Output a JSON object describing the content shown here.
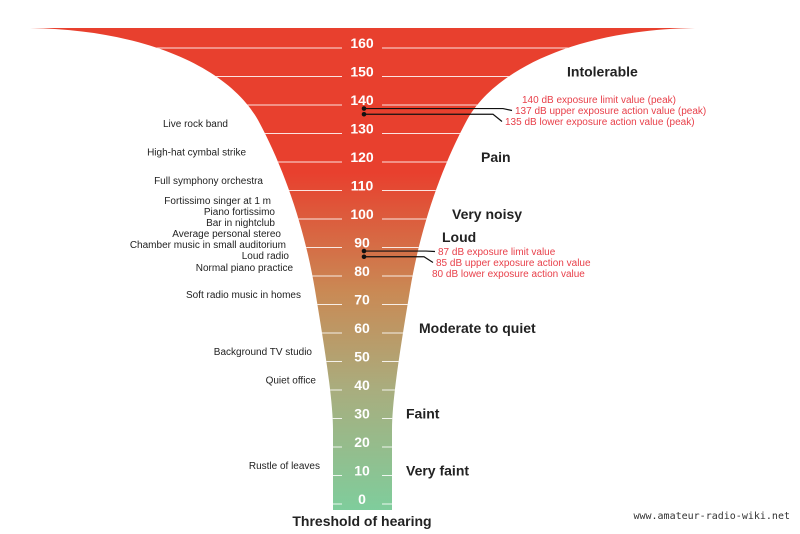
{
  "scale": {
    "unit": "dB",
    "levels": [
      160,
      150,
      140,
      130,
      120,
      110,
      100,
      90,
      80,
      70,
      60,
      50,
      40,
      30,
      20,
      10,
      0
    ]
  },
  "categories": [
    {
      "label": "Intolerable",
      "db": 150
    },
    {
      "label": "Pain",
      "db": 120
    },
    {
      "label": "Very noisy",
      "db": 100
    },
    {
      "label": "Loud",
      "db": 92
    },
    {
      "label": "Moderate to quiet",
      "db": 60
    },
    {
      "label": "Faint",
      "db": 30
    },
    {
      "label": "Very faint",
      "db": 10
    }
  ],
  "examples": [
    {
      "label": "Live rock band",
      "db": 132
    },
    {
      "label": "High-hat cymbal strike",
      "db": 122
    },
    {
      "label": "Full symphony orchestra",
      "db": 112
    },
    {
      "label": "Fortissimo singer at 1 m",
      "db": 104
    },
    {
      "label": "Piano fortissimo",
      "db": 100.5
    },
    {
      "label": "Bar in nightclub",
      "db": 97.5
    },
    {
      "label": "Average personal stereo",
      "db": 93.5
    },
    {
      "label": "Chamber music in small auditorium",
      "db": 90
    },
    {
      "label": "Loud radio",
      "db": 86
    },
    {
      "label": "Normal piano practice",
      "db": 81.5
    },
    {
      "label": "Soft radio music in homes",
      "db": 72
    },
    {
      "label": "Background TV studio",
      "db": 52
    },
    {
      "label": "Quiet office",
      "db": 42
    },
    {
      "label": "Rustle of leaves",
      "db": 12
    }
  ],
  "limits": [
    {
      "label": "140 dB exposure limit value (peak)",
      "db": 140,
      "marker": false
    },
    {
      "label": "137 dB upper exposure action value (peak)",
      "db": 137,
      "marker": true
    },
    {
      "label": "135 dB lower exposure action value (peak)",
      "db": 135,
      "marker": true
    },
    {
      "label": "87 dB exposure limit value",
      "db": 87,
      "marker": true
    },
    {
      "label": "85 dB upper exposure action value",
      "db": 85,
      "marker": true
    },
    {
      "label": "80 dB lower exposure action value",
      "db": 80,
      "marker": false
    }
  ],
  "footer": "Threshold of hearing",
  "watermark": "www.amateur-radio-wiki.net",
  "colors": {
    "top": "#e8402e",
    "middle": "#c98a55",
    "low": "#a9ad7e",
    "bottom": "#7fcd9c",
    "limit_text": "#e8404a",
    "text": "#222"
  }
}
